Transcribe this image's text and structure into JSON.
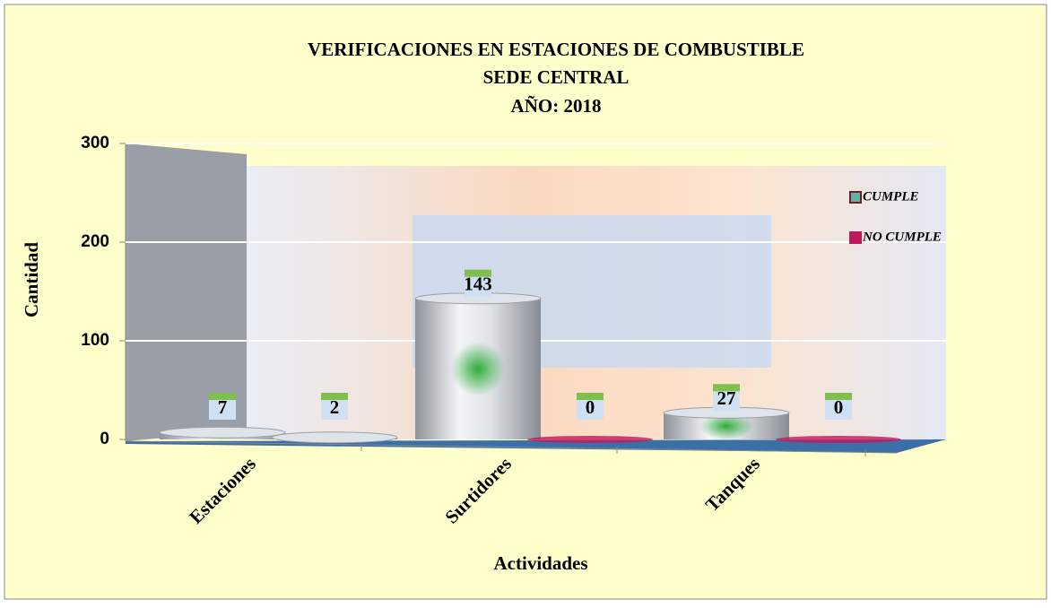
{
  "chart_data": {
    "type": "bar",
    "title": [
      "VERIFICACIONES EN ESTACIONES DE COMBUSTIBLE",
      "SEDE CENTRAL",
      "AÑO: 2018"
    ],
    "x_label": "Actividades",
    "y_label": "Cantidad",
    "categories": [
      "Estaciones",
      "Surtidores",
      "Tanques"
    ],
    "series": [
      {
        "name": "CUMPLE",
        "color": "#5fb3a6",
        "values": [
          7,
          143,
          27
        ]
      },
      {
        "name": "NO CUMPLE",
        "color": "#c0185a",
        "values": [
          2,
          0,
          0
        ]
      }
    ],
    "ylim": [
      0,
      300
    ],
    "yticks": [
      0,
      100,
      200,
      300
    ],
    "grid": true,
    "legend": "right"
  }
}
